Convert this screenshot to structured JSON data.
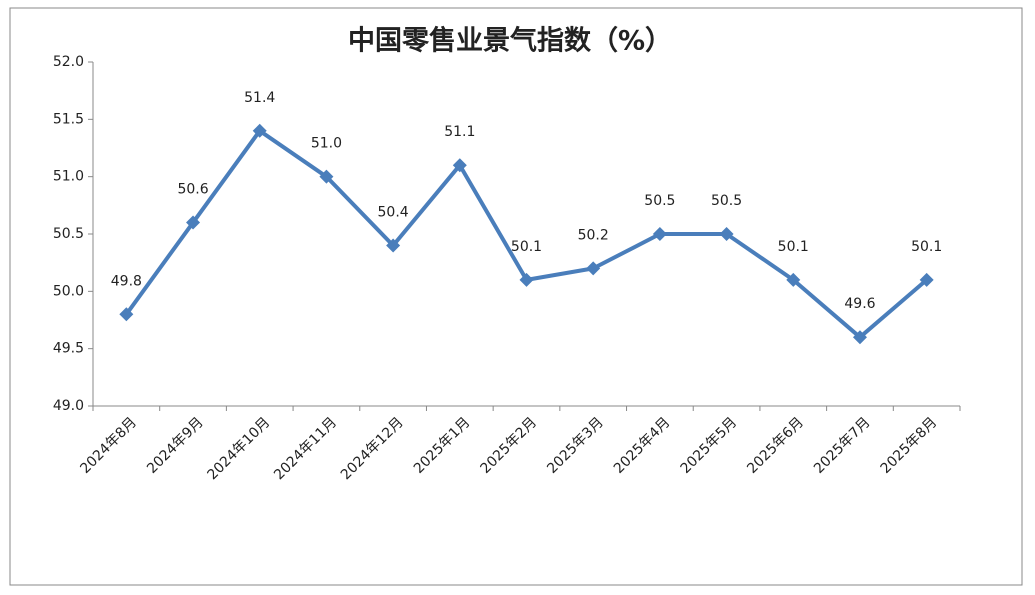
{
  "chart_data": {
    "type": "line",
    "title": "中国零售业景气指数（%）",
    "categories": [
      "2024年8月",
      "2024年9月",
      "2024年10月",
      "2024年11月",
      "2024年12月",
      "2025年1月",
      "2025年2月",
      "2025年3月",
      "2025年4月",
      "2025年5月",
      "2025年6月",
      "2025年7月",
      "2025年8月"
    ],
    "series": [
      {
        "color": "#4a7ebb",
        "values": [
          49.8,
          50.6,
          51.4,
          51.0,
          50.4,
          51.1,
          50.1,
          50.2,
          50.5,
          50.5,
          50.1,
          49.6,
          50.1
        ],
        "value_labels": [
          "49.8",
          "50.6",
          "51.4",
          "51.0",
          "50.4",
          "51.1",
          "50.1",
          "50.2",
          "50.5",
          "50.5",
          "50.1",
          "49.6",
          "50.1"
        ]
      }
    ],
    "ylim": [
      49,
      52
    ],
    "yticks": [
      {
        "value": 49,
        "label": "49.0"
      },
      49.5,
      {
        "value": 50,
        "label": "50.0"
      },
      50.5,
      {
        "value": 51,
        "label": "51.0"
      },
      51.5,
      {
        "value": 52,
        "label": "52.0"
      }
    ],
    "grid": false
  }
}
